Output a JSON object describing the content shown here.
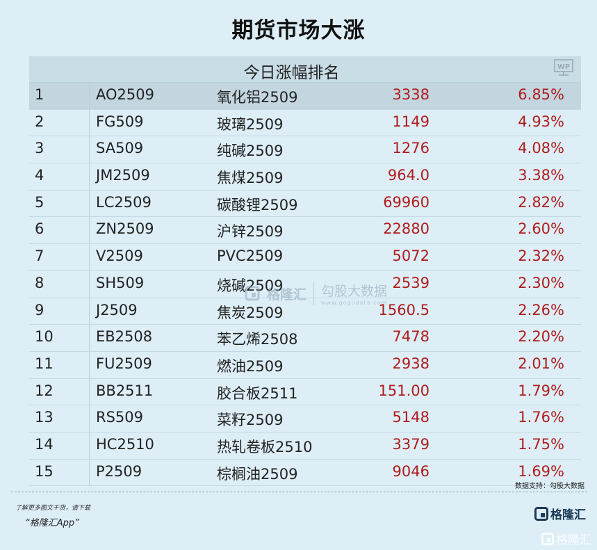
{
  "title": "期货市场大涨",
  "table": {
    "caption": "今日涨幅排名",
    "wp_icon_label": "WP",
    "rows": [
      {
        "rank": "1",
        "code": "AO2509",
        "name": "氧化铝2509",
        "price": "3338",
        "pct": "6.85%"
      },
      {
        "rank": "2",
        "code": "FG509",
        "name": "玻璃2509",
        "price": "1149",
        "pct": "4.93%"
      },
      {
        "rank": "3",
        "code": "SA509",
        "name": "纯碱2509",
        "price": "1276",
        "pct": "4.08%"
      },
      {
        "rank": "4",
        "code": "JM2509",
        "name": "焦煤2509",
        "price": "964.0",
        "pct": "3.38%"
      },
      {
        "rank": "5",
        "code": "LC2509",
        "name": "碳酸锂2509",
        "price": "69960",
        "pct": "2.82%"
      },
      {
        "rank": "6",
        "code": "ZN2509",
        "name": "沪锌2509",
        "price": "22880",
        "pct": "2.60%"
      },
      {
        "rank": "7",
        "code": "V2509",
        "name": "PVC2509",
        "price": "5072",
        "pct": "2.32%"
      },
      {
        "rank": "8",
        "code": "SH509",
        "name": "烧碱2509",
        "price": "2539",
        "pct": "2.30%"
      },
      {
        "rank": "9",
        "code": "J2509",
        "name": "焦炭2509",
        "price": "1560.5",
        "pct": "2.26%"
      },
      {
        "rank": "10",
        "code": "EB2508",
        "name": "苯乙烯2508",
        "price": "7478",
        "pct": "2.20%"
      },
      {
        "rank": "11",
        "code": "FU2509",
        "name": "燃油2509",
        "price": "2938",
        "pct": "2.01%"
      },
      {
        "rank": "12",
        "code": "BB2511",
        "name": "胶合板2511",
        "price": "151.00",
        "pct": "1.79%"
      },
      {
        "rank": "13",
        "code": "RS509",
        "name": "菜籽2509",
        "price": "5148",
        "pct": "1.76%"
      },
      {
        "rank": "14",
        "code": "HC2510",
        "name": "热轧卷板2510",
        "price": "3379",
        "pct": "1.75%"
      },
      {
        "rank": "15",
        "code": "P2509",
        "name": "棕榈油2509",
        "price": "9046",
        "pct": "1.69%"
      }
    ]
  },
  "watermark": {
    "brand": "格隆汇",
    "right_big": "勾股大数据",
    "right_small": "www.gogudata.com"
  },
  "footer": {
    "source": "数据支持：勾股大数据",
    "promo": "了解更多图文干货，请下载",
    "app_name": "“格隆汇App”",
    "logo_text": "格隆汇",
    "corner_watermark": "格隆汇"
  },
  "colors": {
    "background": "#ddeef7",
    "header_bg": "#c9dde7",
    "up_red": "#b01b1b"
  }
}
